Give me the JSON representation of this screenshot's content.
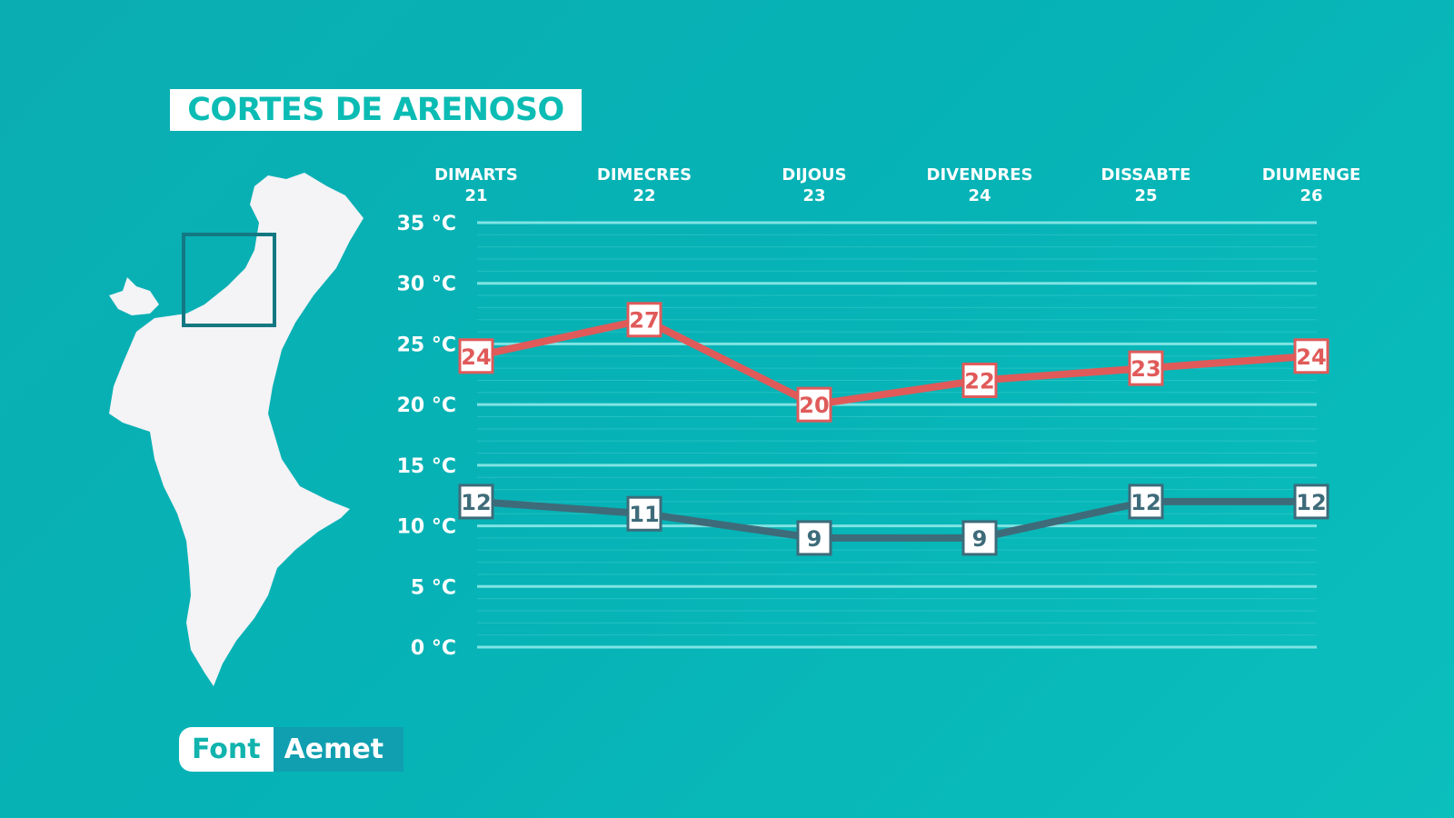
{
  "title": "CORTES DE ARENOSO",
  "source": {
    "label": "Font",
    "value": "Aemet"
  },
  "colors": {
    "max": "#e05a5a",
    "min": "#3e6b7a",
    "grid": "#7fe3e3",
    "background": "#08b1b4"
  },
  "chart_data": {
    "type": "line",
    "categories": [
      [
        "DIMARTS",
        "21"
      ],
      [
        "DIMECRES",
        "22"
      ],
      [
        "DIJOUS",
        "23"
      ],
      [
        "DIVENDRES",
        "24"
      ],
      [
        "DISSABTE",
        "25"
      ],
      [
        "DIUMENGE",
        "26"
      ]
    ],
    "yticks": [
      "0 °C",
      "5 °C",
      "10 °C",
      "15 °C",
      "20 °C",
      "25 °C",
      "30 °C",
      "35 °C"
    ],
    "ylim": [
      0,
      35
    ],
    "grid": true,
    "series": [
      {
        "key": "max",
        "values": [
          24,
          27,
          20,
          22,
          23,
          24
        ]
      },
      {
        "key": "min",
        "values": [
          12,
          11,
          9,
          9,
          12,
          12
        ]
      }
    ]
  }
}
